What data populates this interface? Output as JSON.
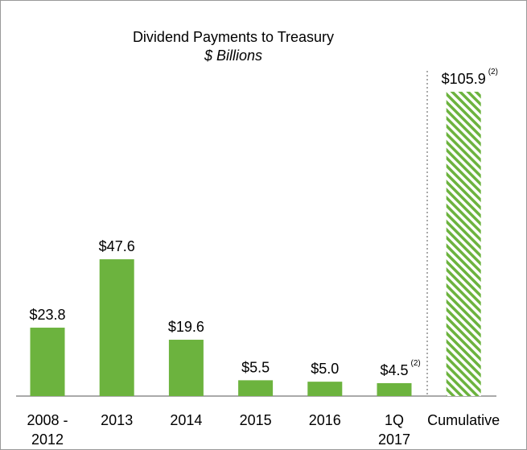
{
  "chart_data": {
    "type": "bar",
    "title": "Dividend Payments to Treasury",
    "subtitle": "$ Billions",
    "categories": [
      "2008 -\n2012",
      "2013",
      "2014",
      "2015",
      "2016",
      "1Q\n2017",
      "Cumulative"
    ],
    "values": [
      23.8,
      47.6,
      19.6,
      5.5,
      5.0,
      4.5,
      105.9
    ],
    "value_labels": [
      "$23.8",
      "$47.6",
      "$19.6",
      "$5.5",
      "$5.0",
      "$4.5",
      "$105.9"
    ],
    "value_notes": [
      null,
      null,
      null,
      null,
      null,
      "(2)",
      "(2)"
    ],
    "color": "#6cb33e",
    "hatched": [
      false,
      false,
      false,
      false,
      false,
      false,
      true
    ]
  }
}
